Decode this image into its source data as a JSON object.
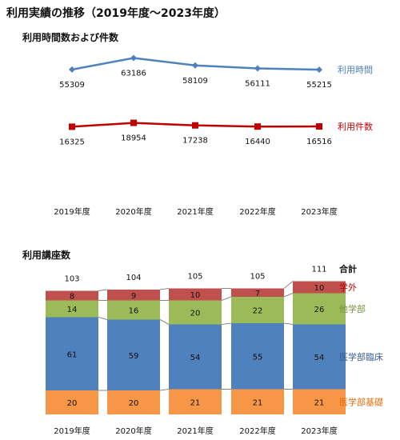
{
  "page_title": "利用実績の推移（2019年度～2023年度）",
  "chart_data": [
    {
      "type": "line",
      "title": "利用時間数および件数",
      "categories": [
        "2019年度",
        "2020年度",
        "2021年度",
        "2022年度",
        "2023年度"
      ],
      "series": [
        {
          "name": "利用時間",
          "values": [
            55309,
            63186,
            58109,
            56111,
            55215
          ],
          "color": "#4f81bd",
          "marker": "diamond"
        },
        {
          "name": "利用件数",
          "values": [
            16325,
            18954,
            17238,
            16440,
            16516
          ],
          "color": "#c00000",
          "marker": "square"
        }
      ],
      "legend": "right",
      "grid": false
    },
    {
      "type": "bar",
      "stacked": true,
      "title": "利用講座数",
      "categories": [
        "2019年度",
        "2020年度",
        "2021年度",
        "2022年度",
        "2023年度"
      ],
      "series": [
        {
          "name": "医学部基礎",
          "values": [
            20,
            20,
            21,
            21,
            21
          ],
          "color": "#f79646",
          "label_color": "#e46c0a"
        },
        {
          "name": "医学部臨床",
          "values": [
            61,
            59,
            54,
            55,
            54
          ],
          "color": "#4f81bd",
          "label_color": "#366092"
        },
        {
          "name": "他学部",
          "values": [
            14,
            16,
            20,
            22,
            26
          ],
          "color": "#9bbb59",
          "label_color": "#77933c"
        },
        {
          "name": "学外",
          "values": [
            8,
            9,
            10,
            7,
            10
          ],
          "color": "#c0504d",
          "label_color": "#c00000"
        }
      ],
      "totals": {
        "name": "合計",
        "values": [
          103,
          104,
          105,
          105,
          111
        ]
      },
      "legend": "right",
      "grid": false
    }
  ]
}
